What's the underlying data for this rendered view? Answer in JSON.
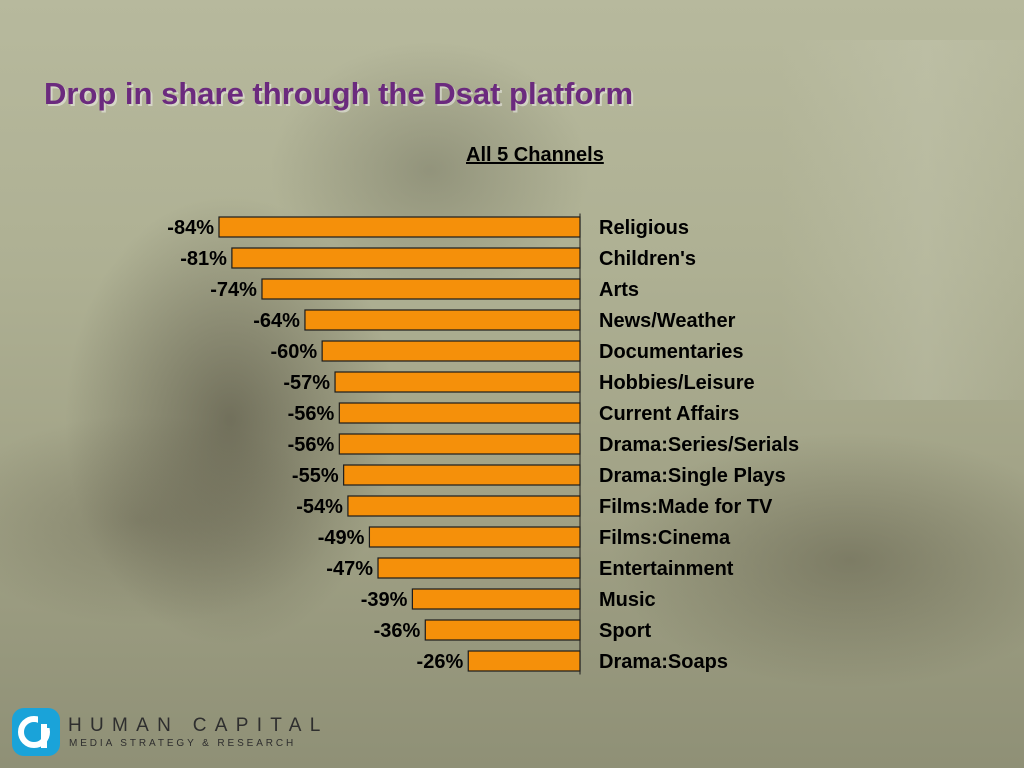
{
  "page": {
    "title": "Drop in share through the Dsat platform",
    "subtitle": "All 5 Channels"
  },
  "chart_data": {
    "type": "bar",
    "orientation": "horizontal",
    "title": "All 5 Channels",
    "categories": [
      "Religious",
      "Children's",
      "Arts",
      "News/Weather",
      "Documentaries",
      "Hobbies/Leisure",
      "Current Affairs",
      "Drama:Series/Serials",
      "Drama:Single Plays",
      "Films:Made for TV",
      "Films:Cinema",
      "Entertainment",
      "Music",
      "Sport",
      "Drama:Soaps"
    ],
    "values": [
      -84,
      -81,
      -74,
      -64,
      -60,
      -57,
      -56,
      -56,
      -55,
      -54,
      -49,
      -47,
      -39,
      -36,
      -26
    ],
    "value_labels": [
      "-84%",
      "-81%",
      "-74%",
      "-64%",
      "-60%",
      "-57%",
      "-56%",
      "-56%",
      "-55%",
      "-54%",
      "-49%",
      "-47%",
      "-39%",
      "-36%",
      "-26%"
    ],
    "xlim": [
      -84,
      0
    ],
    "grid": false,
    "legend": "none",
    "bar_color": "#f5900a"
  },
  "colors": {
    "title": "#6b2a7e",
    "logo_accent": "#1aa3d9"
  },
  "logo": {
    "name": "HUMAN CAPITAL",
    "tagline": "MEDIA STRATEGY & RESEARCH"
  }
}
